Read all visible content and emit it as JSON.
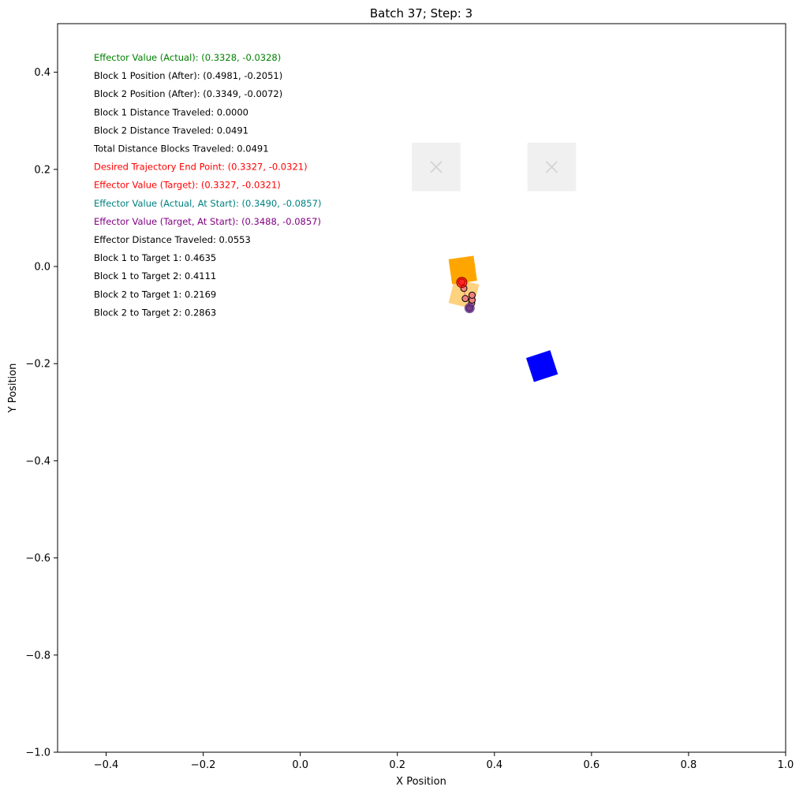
{
  "chart_data": {
    "type": "scatter",
    "title": "Batch 37; Step: 3",
    "xlabel": "X Position",
    "ylabel": "Y Position",
    "xlim": [
      -0.5,
      1.0
    ],
    "ylim": [
      -1.0,
      0.5
    ],
    "xticks": [
      -0.4,
      -0.2,
      0.0,
      0.2,
      0.4,
      0.6,
      0.8,
      1.0
    ],
    "yticks": [
      0.4,
      0.2,
      0.0,
      -0.2,
      -0.4,
      -0.6,
      -0.8,
      -1.0
    ],
    "xtick_labels": [
      "−0.4",
      "−0.2",
      "0.0",
      "0.2",
      "0.4",
      "0.6",
      "0.8",
      "1.0"
    ],
    "ytick_labels": [
      "0.4",
      "0.2",
      "0.0",
      "−0.2",
      "−0.4",
      "−0.6",
      "−0.8",
      "−1.0"
    ],
    "grid": false,
    "annotations": [
      {
        "text": "Effector Value (Actual): (0.3328, -0.0328)",
        "color": "#008000"
      },
      {
        "text": "Block 1 Position (After): (0.4981, -0.2051)",
        "color": "#000000"
      },
      {
        "text": "Block 2 Position (After): (0.3349, -0.0072)",
        "color": "#000000"
      },
      {
        "text": "Block 1 Distance Traveled: 0.0000",
        "color": "#000000"
      },
      {
        "text": "Block 2 Distance Traveled: 0.0491",
        "color": "#000000"
      },
      {
        "text": "Total Distance Blocks Traveled: 0.0491",
        "color": "#000000"
      },
      {
        "text": "Desired Trajectory End Point: (0.3327, -0.0321)",
        "color": "#ff0000"
      },
      {
        "text": "Effector Value (Target): (0.3327, -0.0321)",
        "color": "#ff0000"
      },
      {
        "text": "Effector Value (Actual, At Start): (0.3490, -0.0857)",
        "color": "#008080"
      },
      {
        "text": "Effector Value (Target, At Start): (0.3488, -0.0857)",
        "color": "#800080"
      },
      {
        "text": "Effector Distance Traveled: 0.0553",
        "color": "#000000"
      },
      {
        "text": "Block 1 to Target 1: 0.4635",
        "color": "#000000"
      },
      {
        "text": "Block 1 to Target 2: 0.4111",
        "color": "#000000"
      },
      {
        "text": "Block 2 to Target 1: 0.2169",
        "color": "#000000"
      },
      {
        "text": "Block 2 to Target 2: 0.2863",
        "color": "#000000"
      }
    ],
    "targets": [
      {
        "x": 0.28,
        "y": 0.205,
        "size": 0.1,
        "color": "#d3d3d3",
        "marker": "x"
      },
      {
        "x": 0.518,
        "y": 0.205,
        "size": 0.1,
        "color": "#d3d3d3",
        "marker": "x"
      }
    ],
    "blocks": [
      {
        "x": 0.4981,
        "y": -0.2051,
        "size": 0.052,
        "angle": -18,
        "color": "#0000ff",
        "opacity": 1.0
      },
      {
        "x": 0.3349,
        "y": -0.0072,
        "size": 0.052,
        "angle": -8,
        "color": "#ffa500",
        "opacity": 1.0
      },
      {
        "x": 0.337,
        "y": -0.056,
        "size": 0.052,
        "angle": 14,
        "color": "#ffa500",
        "opacity": 0.5
      }
    ],
    "trajectory": [
      {
        "x": 0.3488,
        "y": -0.0857
      },
      {
        "x": 0.353,
        "y": -0.0755
      },
      {
        "x": 0.354,
        "y": -0.069
      },
      {
        "x": 0.354,
        "y": -0.059
      },
      {
        "x": 0.34,
        "y": -0.066
      },
      {
        "x": 0.337,
        "y": -0.045
      },
      {
        "x": 0.3327,
        "y": -0.0321
      }
    ],
    "trajectory_color": "#f08080",
    "start_marker": {
      "x": 0.3488,
      "y": -0.0857,
      "color": "#5b2a86"
    },
    "end_marker": {
      "x": 0.3328,
      "y": -0.0328,
      "color": "#ff0000"
    }
  }
}
